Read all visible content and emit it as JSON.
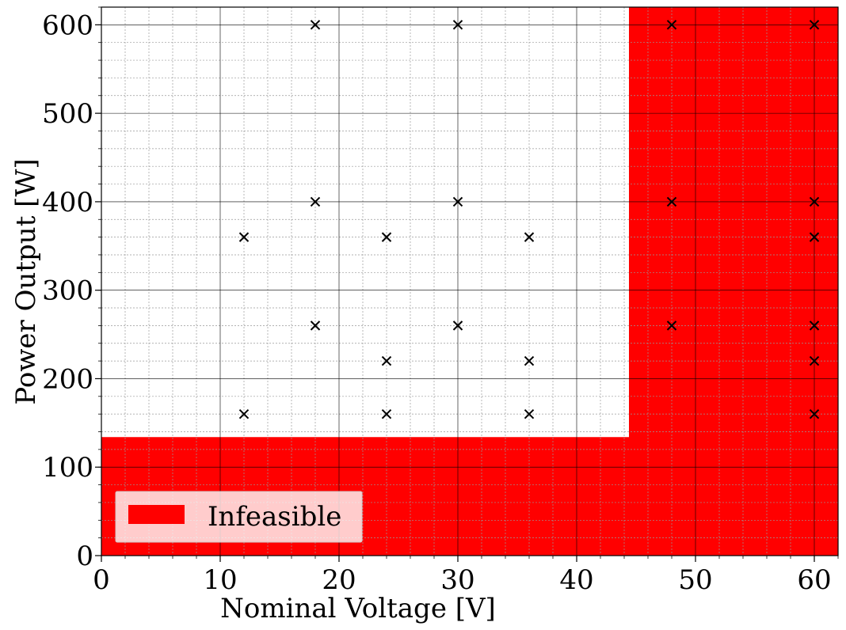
{
  "chart_data": {
    "type": "scatter",
    "title": "",
    "xlabel": "Nominal Voltage [V]",
    "ylabel": "Power Output [W]",
    "xlim": [
      0,
      62
    ],
    "ylim": [
      0,
      620
    ],
    "xticks": [
      "0",
      "10",
      "20",
      "30",
      "40",
      "50",
      "60"
    ],
    "yticks": [
      "0",
      "100",
      "200",
      "300",
      "400",
      "500",
      "600"
    ],
    "grid": "major and minor",
    "series": [
      {
        "marker": "x",
        "color": "#000000",
        "points": [
          {
            "x": 12,
            "y": 160
          },
          {
            "x": 12,
            "y": 360
          },
          {
            "x": 18,
            "y": 260
          },
          {
            "x": 18,
            "y": 400
          },
          {
            "x": 18,
            "y": 600
          },
          {
            "x": 24,
            "y": 160
          },
          {
            "x": 24,
            "y": 220
          },
          {
            "x": 24,
            "y": 360
          },
          {
            "x": 30,
            "y": 260
          },
          {
            "x": 30,
            "y": 400
          },
          {
            "x": 30,
            "y": 600
          },
          {
            "x": 36,
            "y": 160
          },
          {
            "x": 36,
            "y": 220
          },
          {
            "x": 36,
            "y": 360
          },
          {
            "x": 48,
            "y": 260
          },
          {
            "x": 48,
            "y": 400
          },
          {
            "x": 48,
            "y": 600
          },
          {
            "x": 60,
            "y": 160
          },
          {
            "x": 60,
            "y": 220
          },
          {
            "x": 60,
            "y": 260
          },
          {
            "x": 60,
            "y": 360
          },
          {
            "x": 60,
            "y": 400
          },
          {
            "x": 60,
            "y": 600
          }
        ]
      }
    ],
    "regions": [
      {
        "name": "Infeasible",
        "color": "#ff0000",
        "boundary": [
          {
            "x": 0,
            "y": 0
          },
          {
            "x": 62,
            "y": 0
          },
          {
            "x": 62,
            "y": 620
          },
          {
            "x": 44.4,
            "y": 620
          },
          {
            "x": 44.4,
            "y": 134
          },
          {
            "x": 0,
            "y": 134
          }
        ]
      }
    ],
    "legend": {
      "position": "lower-left",
      "entries": [
        {
          "label": "Infeasible",
          "color": "#ff0000"
        }
      ]
    }
  }
}
